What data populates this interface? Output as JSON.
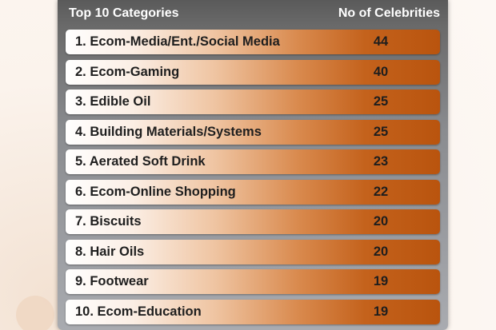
{
  "table": {
    "header": {
      "category_label": "Top 10 Categories",
      "count_label": "No of Celebrities"
    },
    "rows": [
      {
        "label": "1. Ecom-Media/Ent./Social Media",
        "value": "44"
      },
      {
        "label": "2. Ecom-Gaming",
        "value": "40"
      },
      {
        "label": "3. Edible Oil",
        "value": "25"
      },
      {
        "label": "4. Building Materials/Systems",
        "value": "25"
      },
      {
        "label": "5. Aerated Soft Drink",
        "value": "23"
      },
      {
        "label": "6. Ecom-Online Shopping",
        "value": "22"
      },
      {
        "label": "7. Biscuits",
        "value": "20"
      },
      {
        "label": "8. Hair Oils",
        "value": "20"
      },
      {
        "label": "9. Footwear",
        "value": "19"
      },
      {
        "label": "10. Ecom-Education",
        "value": "19"
      }
    ]
  },
  "colors": {
    "header_bg": "#5a5a5a",
    "row_accent": "#c4621c",
    "page_bg": "#fbf3ec"
  }
}
